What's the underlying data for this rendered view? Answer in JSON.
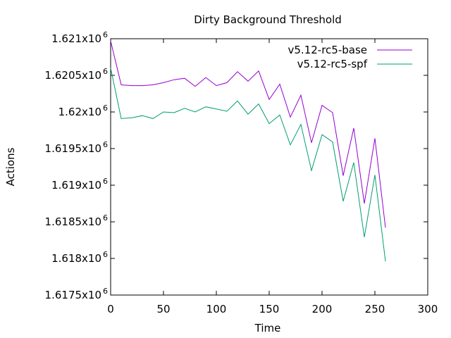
{
  "chart_data": {
    "type": "line",
    "title": "Dirty Background Threshold",
    "xlabel": "Time",
    "ylabel": "Actions",
    "xlim": [
      0,
      300
    ],
    "ylim": [
      1617500,
      1621000
    ],
    "legend_position": "top-right",
    "grid": false,
    "x_ticks": [
      {
        "value": 0,
        "label": "0"
      },
      {
        "value": 50,
        "label": "50"
      },
      {
        "value": 100,
        "label": "100"
      },
      {
        "value": 150,
        "label": "150"
      },
      {
        "value": 200,
        "label": "200"
      },
      {
        "value": 250,
        "label": "250"
      },
      {
        "value": 300,
        "label": "300"
      }
    ],
    "y_ticks": [
      {
        "value": 1617500,
        "mantissa": "1.6175x10",
        "exponent": "6"
      },
      {
        "value": 1618000,
        "mantissa": "1.618x10",
        "exponent": "6"
      },
      {
        "value": 1618500,
        "mantissa": "1.6185x10",
        "exponent": "6"
      },
      {
        "value": 1619000,
        "mantissa": "1.619x10",
        "exponent": "6"
      },
      {
        "value": 1619500,
        "mantissa": "1.6195x10",
        "exponent": "6"
      },
      {
        "value": 1620000,
        "mantissa": "1.62x10",
        "exponent": "6"
      },
      {
        "value": 1620500,
        "mantissa": "1.6205x10",
        "exponent": "6"
      },
      {
        "value": 1621000,
        "mantissa": "1.621x10",
        "exponent": "6"
      }
    ],
    "x": [
      0,
      10,
      20,
      30,
      40,
      50,
      60,
      70,
      80,
      90,
      100,
      110,
      120,
      130,
      140,
      150,
      160,
      170,
      180,
      190,
      200,
      210,
      220,
      230,
      240,
      250,
      260
    ],
    "series": [
      {
        "name": "v5.12-rc5-base",
        "color": "#9400d3",
        "values": [
          1620970,
          1620370,
          1620360,
          1620360,
          1620370,
          1620400,
          1620440,
          1620460,
          1620350,
          1620470,
          1620360,
          1620400,
          1620550,
          1620420,
          1620560,
          1620170,
          1620380,
          1619930,
          1620230,
          1619580,
          1620090,
          1619990,
          1619130,
          1619780,
          1618750,
          1619640,
          1618420
        ]
      },
      {
        "name": "v5.12-rc5-spf",
        "color": "#009e73",
        "values": [
          1620600,
          1619910,
          1619920,
          1619950,
          1619910,
          1620000,
          1619990,
          1620050,
          1620000,
          1620070,
          1620040,
          1620010,
          1620150,
          1619970,
          1620110,
          1619840,
          1619960,
          1619550,
          1619830,
          1619200,
          1619690,
          1619590,
          1618780,
          1619310,
          1618290,
          1619140,
          1617960
        ]
      }
    ]
  }
}
